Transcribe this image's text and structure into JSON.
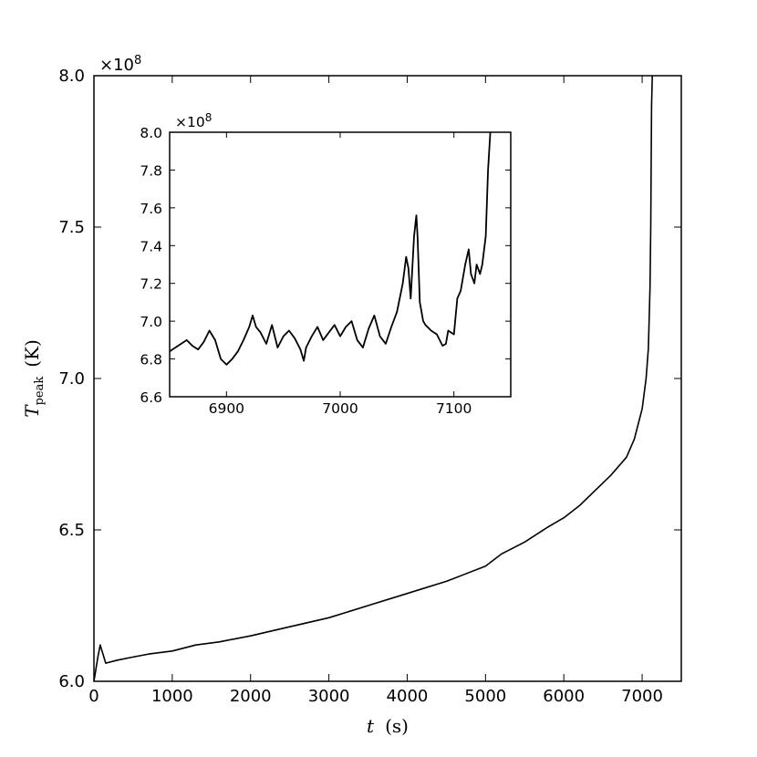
{
  "chart_data": [
    {
      "type": "line",
      "role": "main",
      "xlabel": {
        "symbol": "t",
        "unit": "(s)"
      },
      "ylabel": {
        "symbol": "T",
        "subscript": "peak",
        "unit": "(K)"
      },
      "y_offset_text": "×10",
      "y_offset_exponent": "8",
      "y_multiplier": 100000000,
      "xlim": [
        0,
        7500
      ],
      "ylim": [
        6.0,
        8.0
      ],
      "x_ticks": [
        "0",
        "1000",
        "2000",
        "3000",
        "4000",
        "5000",
        "6000",
        "7000"
      ],
      "y_ticks": [
        "6.0",
        "6.5",
        "7.0",
        "7.5",
        "8.0"
      ],
      "grid": false,
      "series": [
        {
          "color": "#000000",
          "x": [
            0,
            50,
            80,
            150,
            300,
            500,
            700,
            1000,
            1300,
            1600,
            2000,
            2500,
            3000,
            3500,
            4000,
            4500,
            5000,
            5200,
            5500,
            5800,
            6000,
            6200,
            6400,
            6600,
            6800,
            6900,
            7000,
            7050,
            7080,
            7100,
            7110,
            7120,
            7130
          ],
          "y": [
            6.0,
            6.08,
            6.12,
            6.06,
            6.07,
            6.08,
            6.09,
            6.1,
            6.12,
            6.13,
            6.15,
            6.18,
            6.21,
            6.25,
            6.29,
            6.33,
            6.38,
            6.42,
            6.46,
            6.51,
            6.54,
            6.58,
            6.63,
            6.68,
            6.74,
            6.8,
            6.9,
            7.0,
            7.1,
            7.3,
            7.5,
            7.9,
            8.0
          ]
        }
      ]
    },
    {
      "type": "line",
      "role": "inset",
      "y_offset_text": "×10",
      "y_offset_exponent": "8",
      "y_multiplier": 100000000,
      "xlim": [
        6850,
        7150
      ],
      "ylim": [
        6.6,
        8.0
      ],
      "x_ticks": [
        "6900",
        "7000",
        "7100"
      ],
      "y_ticks": [
        "6.6",
        "6.8",
        "7.0",
        "7.2",
        "7.4",
        "7.6",
        "7.8",
        "8.0"
      ],
      "grid": false,
      "series": [
        {
          "color": "#000000",
          "x": [
            6850,
            6855,
            6860,
            6865,
            6870,
            6875,
            6880,
            6885,
            6890,
            6895,
            6900,
            6905,
            6910,
            6915,
            6920,
            6923,
            6926,
            6930,
            6935,
            6940,
            6945,
            6950,
            6955,
            6960,
            6965,
            6968,
            6970,
            6975,
            6980,
            6985,
            6990,
            6995,
            7000,
            7005,
            7010,
            7015,
            7020,
            7025,
            7030,
            7035,
            7040,
            7045,
            7050,
            7055,
            7058,
            7060,
            7062,
            7065,
            7067,
            7068,
            7070,
            7073,
            7075,
            7080,
            7085,
            7090,
            7093,
            7095,
            7100,
            7103,
            7106,
            7110,
            7113,
            7115,
            7118,
            7120,
            7123,
            7125,
            7128,
            7130,
            7132
          ],
          "y": [
            6.84,
            6.86,
            6.88,
            6.9,
            6.87,
            6.85,
            6.89,
            6.95,
            6.9,
            6.8,
            6.77,
            6.8,
            6.84,
            6.9,
            6.97,
            7.03,
            6.97,
            6.94,
            6.88,
            6.98,
            6.86,
            6.92,
            6.95,
            6.91,
            6.85,
            6.79,
            6.86,
            6.92,
            6.97,
            6.9,
            6.94,
            6.98,
            6.92,
            6.97,
            7.0,
            6.9,
            6.86,
            6.96,
            7.03,
            6.92,
            6.88,
            6.97,
            7.05,
            7.2,
            7.34,
            7.28,
            7.12,
            7.45,
            7.56,
            7.45,
            7.1,
            7.0,
            6.98,
            6.95,
            6.93,
            6.87,
            6.88,
            6.95,
            6.93,
            7.12,
            7.16,
            7.3,
            7.38,
            7.25,
            7.2,
            7.3,
            7.25,
            7.3,
            7.45,
            7.8,
            8.0
          ]
        }
      ]
    }
  ]
}
